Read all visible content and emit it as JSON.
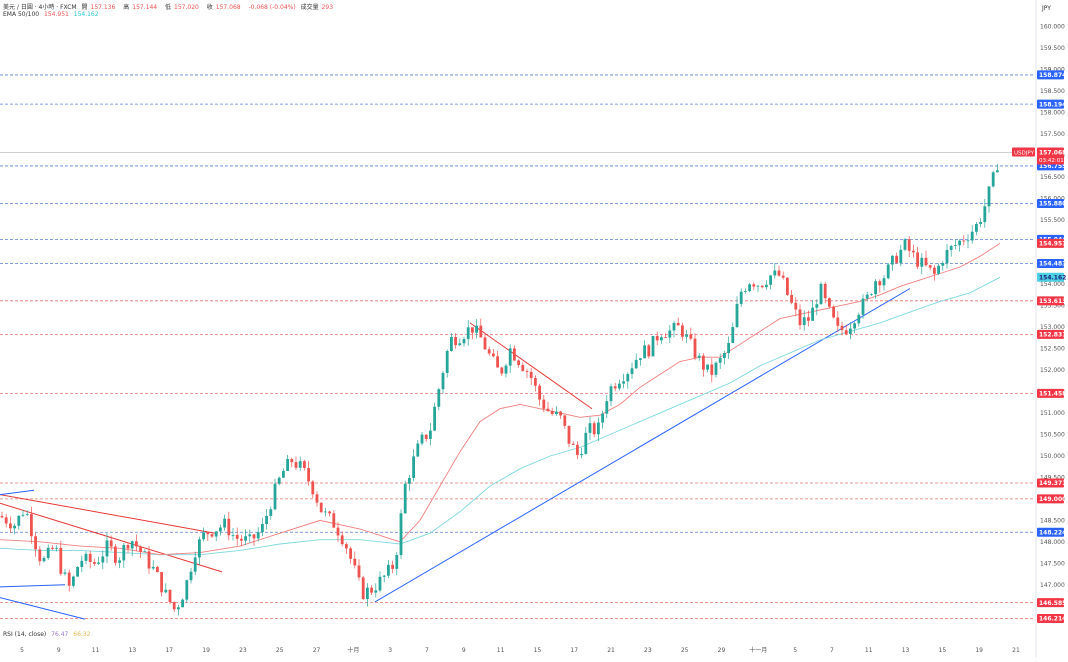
{
  "header": {
    "symbol_line": "美元 / 日圓 · 4小時 · FXCM",
    "ohlc": {
      "o_label": "開",
      "o": "157.136",
      "h_label": "高",
      "h": "157.144",
      "l_label": "低",
      "l": "157.020",
      "c_label": "收",
      "c": "157.068",
      "change": "-0.068 (-0.04%)",
      "vol_label": "成交量",
      "vol": "293"
    },
    "ema_label": "EMA 50/100",
    "ema50": "154.951",
    "ema100": "154.162",
    "currency": "JPY"
  },
  "rsi": {
    "label": "RSI (14, close)",
    "v1": "76.47",
    "v2": "66.32"
  },
  "colors": {
    "up": "#26a69a",
    "down": "#ef5350",
    "ema50": "#f08080",
    "ema100": "#7fd8e0",
    "blue_line": "#2962ff",
    "red_dash": "#e57373",
    "blue_dash": "#5b7fd4",
    "price_tag": "#f23645"
  },
  "chart_data": {
    "type": "candlestick",
    "ylim": [
      145.9,
      160.2
    ],
    "y_ticks": [
      "147.000",
      "147.500",
      "148.000",
      "148.500",
      "149.000",
      "149.500",
      "150.000",
      "150.500",
      "151.000",
      "151.500",
      "152.000",
      "152.500",
      "153.000",
      "153.500",
      "154.000",
      "154.500",
      "155.000",
      "155.500",
      "156.000",
      "156.500",
      "157.000",
      "157.500",
      "158.000",
      "158.500",
      "159.000",
      "159.500",
      "160.000"
    ],
    "x_ticks": [
      "5",
      "9",
      "11",
      "13",
      "17",
      "19",
      "23",
      "25",
      "27",
      "十月",
      "3",
      "7",
      "9",
      "11",
      "15",
      "17",
      "21",
      "23",
      "25",
      "29",
      "十一月",
      "5",
      "7",
      "11",
      "13",
      "15",
      "19",
      "21"
    ],
    "hlines": [
      {
        "price": 158.874,
        "label": "158.874",
        "style": "blue"
      },
      {
        "price": 158.194,
        "label": "158.194",
        "style": "blue"
      },
      {
        "price": 156.755,
        "label": "156.755",
        "style": "blue"
      },
      {
        "price": 155.88,
        "label": "155.880",
        "style": "blue"
      },
      {
        "price": 155.044,
        "label": "155.044",
        "style": "blue"
      },
      {
        "price": 154.483,
        "label": "154.483",
        "style": "blue"
      },
      {
        "price": 153.613,
        "label": "153.613",
        "style": "red"
      },
      {
        "price": 152.831,
        "label": "152.831",
        "style": "red"
      },
      {
        "price": 151.458,
        "label": "151.458",
        "style": "red"
      },
      {
        "price": 149.371,
        "label": "149.371",
        "style": "red"
      },
      {
        "price": 149.0,
        "label": "149.000",
        "style": "red"
      },
      {
        "price": 148.224,
        "label": "148.224",
        "style": "blue"
      },
      {
        "price": 146.585,
        "label": "146.585",
        "style": "red"
      },
      {
        "price": 146.214,
        "label": "146.214",
        "style": "red"
      }
    ],
    "price_tags": [
      {
        "price": 154.951,
        "label": "154.951",
        "color": "#f23645",
        "text_color": "#ffffff"
      },
      {
        "price": 154.162,
        "label": "154.162",
        "color": "#4dd0e1",
        "text_color": "#1a237e"
      }
    ],
    "current": {
      "symbol": "USDJPY",
      "price": 157.068,
      "label": "157.068",
      "countdown": "03:42:01"
    },
    "close_path": [
      [
        0,
        148.6
      ],
      [
        15,
        148.4
      ],
      [
        25,
        148.8
      ],
      [
        35,
        148.0
      ],
      [
        42,
        147.5
      ],
      [
        55,
        147.9
      ],
      [
        62,
        147.3
      ],
      [
        70,
        146.9
      ],
      [
        80,
        147.6
      ],
      [
        95,
        147.5
      ],
      [
        108,
        147.9
      ],
      [
        118,
        147.6
      ],
      [
        130,
        148.1
      ],
      [
        140,
        147.8
      ],
      [
        155,
        147.3
      ],
      [
        165,
        146.8
      ],
      [
        175,
        146.4
      ],
      [
        185,
        146.9
      ],
      [
        195,
        147.8
      ],
      [
        205,
        148.2
      ],
      [
        215,
        148.3
      ],
      [
        225,
        148.4
      ],
      [
        235,
        148.1
      ],
      [
        250,
        148.0
      ],
      [
        262,
        148.3
      ],
      [
        272,
        149.0
      ],
      [
        282,
        149.6
      ],
      [
        292,
        149.9
      ],
      [
        302,
        149.7
      ],
      [
        312,
        149.3
      ],
      [
        322,
        148.7
      ],
      [
        335,
        148.4
      ],
      [
        345,
        148.0
      ],
      [
        355,
        147.3
      ],
      [
        362,
        146.8
      ],
      [
        372,
        146.9
      ],
      [
        385,
        147.2
      ],
      [
        395,
        147.5
      ],
      [
        405,
        149.3
      ],
      [
        412,
        149.8
      ],
      [
        420,
        150.3
      ],
      [
        430,
        150.6
      ],
      [
        440,
        151.7
      ],
      [
        450,
        152.7
      ],
      [
        460,
        152.8
      ],
      [
        472,
        153.0
      ],
      [
        482,
        152.7
      ],
      [
        490,
        152.3
      ],
      [
        500,
        151.9
      ],
      [
        510,
        152.5
      ],
      [
        520,
        152.2
      ],
      [
        530,
        151.9
      ],
      [
        540,
        151.3
      ],
      [
        550,
        151.0
      ],
      [
        560,
        150.9
      ],
      [
        570,
        150.3
      ],
      [
        578,
        150.0
      ],
      [
        588,
        150.6
      ],
      [
        598,
        150.6
      ],
      [
        608,
        151.5
      ],
      [
        618,
        151.8
      ],
      [
        628,
        152.0
      ],
      [
        640,
        152.4
      ],
      [
        650,
        152.5
      ],
      [
        660,
        152.9
      ],
      [
        670,
        152.9
      ],
      [
        680,
        153.0
      ],
      [
        690,
        152.6
      ],
      [
        700,
        152.2
      ],
      [
        710,
        151.9
      ],
      [
        720,
        152.2
      ],
      [
        730,
        152.6
      ],
      [
        740,
        153.8
      ],
      [
        750,
        154.1
      ],
      [
        760,
        154.0
      ],
      [
        770,
        154.2
      ],
      [
        780,
        154.2
      ],
      [
        790,
        153.6
      ],
      [
        800,
        153.1
      ],
      [
        810,
        153.2
      ],
      [
        820,
        153.9
      ],
      [
        828,
        153.4
      ],
      [
        838,
        152.9
      ],
      [
        848,
        153.0
      ],
      [
        858,
        153.4
      ],
      [
        866,
        153.6
      ],
      [
        875,
        154.1
      ],
      [
        885,
        154.2
      ],
      [
        895,
        154.6
      ],
      [
        905,
        154.9
      ],
      [
        915,
        154.6
      ],
      [
        925,
        154.4
      ],
      [
        935,
        154.2
      ],
      [
        942,
        154.6
      ],
      [
        950,
        154.8
      ],
      [
        960,
        155.0
      ],
      [
        970,
        155.2
      ],
      [
        978,
        155.4
      ],
      [
        986,
        155.9
      ],
      [
        994,
        156.5
      ],
      [
        1000,
        157.07
      ]
    ],
    "ema50_path": [
      [
        0,
        148.05
      ],
      [
        40,
        148.0
      ],
      [
        80,
        147.9
      ],
      [
        120,
        147.85
      ],
      [
        160,
        147.7
      ],
      [
        200,
        147.75
      ],
      [
        240,
        147.9
      ],
      [
        280,
        148.2
      ],
      [
        320,
        148.5
      ],
      [
        360,
        148.3
      ],
      [
        400,
        148.0
      ],
      [
        420,
        148.5
      ],
      [
        440,
        149.3
      ],
      [
        460,
        150.1
      ],
      [
        480,
        150.8
      ],
      [
        500,
        151.1
      ],
      [
        520,
        151.2
      ],
      [
        540,
        151.1
      ],
      [
        560,
        151.0
      ],
      [
        580,
        150.9
      ],
      [
        600,
        150.95
      ],
      [
        620,
        151.2
      ],
      [
        640,
        151.6
      ],
      [
        660,
        151.9
      ],
      [
        680,
        152.2
      ],
      [
        700,
        152.3
      ],
      [
        720,
        152.3
      ],
      [
        740,
        152.6
      ],
      [
        760,
        152.9
      ],
      [
        780,
        153.2
      ],
      [
        800,
        153.3
      ],
      [
        820,
        153.4
      ],
      [
        840,
        153.5
      ],
      [
        860,
        153.6
      ],
      [
        880,
        153.75
      ],
      [
        900,
        153.95
      ],
      [
        920,
        154.1
      ],
      [
        940,
        154.25
      ],
      [
        960,
        154.4
      ],
      [
        980,
        154.65
      ],
      [
        1000,
        154.951
      ]
    ],
    "ema100_path": [
      [
        0,
        147.85
      ],
      [
        40,
        147.8
      ],
      [
        80,
        147.8
      ],
      [
        120,
        147.75
      ],
      [
        160,
        147.7
      ],
      [
        200,
        147.7
      ],
      [
        240,
        147.8
      ],
      [
        280,
        147.95
      ],
      [
        320,
        148.05
      ],
      [
        360,
        148.05
      ],
      [
        400,
        147.95
      ],
      [
        430,
        148.2
      ],
      [
        460,
        148.7
      ],
      [
        490,
        149.3
      ],
      [
        520,
        149.7
      ],
      [
        550,
        150.0
      ],
      [
        580,
        150.2
      ],
      [
        610,
        150.5
      ],
      [
        640,
        150.8
      ],
      [
        670,
        151.1
      ],
      [
        700,
        151.4
      ],
      [
        730,
        151.7
      ],
      [
        760,
        152.1
      ],
      [
        790,
        152.4
      ],
      [
        820,
        152.7
      ],
      [
        850,
        152.9
      ],
      [
        880,
        153.1
      ],
      [
        910,
        153.35
      ],
      [
        940,
        153.6
      ],
      [
        970,
        153.8
      ],
      [
        1000,
        154.162
      ]
    ],
    "trendlines": [
      {
        "from": [
          0,
          149.1
        ],
        "to": [
          215,
          148.2
        ],
        "color": "red"
      },
      {
        "from": [
          0,
          148.9
        ],
        "to": [
          222,
          147.3
        ],
        "color": "red"
      },
      {
        "from": [
          470,
          153.1
        ],
        "to": [
          592,
          151.1
        ],
        "color": "red"
      },
      {
        "from": [
          0,
          146.7
        ],
        "to": [
          85,
          146.2
        ],
        "color": "blue"
      },
      {
        "from": [
          0,
          149.1
        ],
        "to": [
          34,
          149.2
        ],
        "color": "blue"
      },
      {
        "from": [
          0,
          146.95
        ],
        "to": [
          65,
          147.0
        ],
        "color": "blue"
      },
      {
        "from": [
          375,
          146.6
        ],
        "to": [
          910,
          153.9
        ],
        "color": "blue"
      }
    ]
  }
}
